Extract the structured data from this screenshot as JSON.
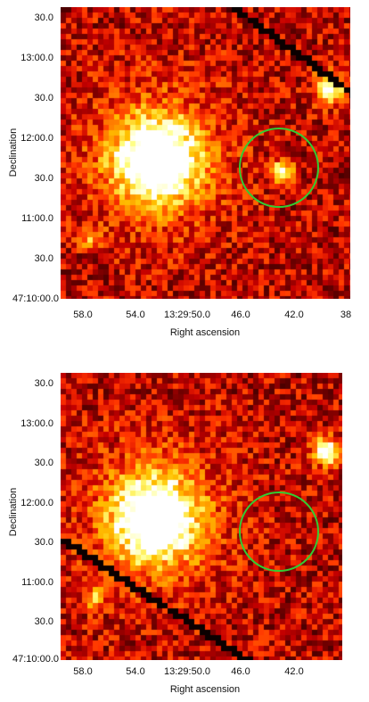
{
  "panels": [
    {
      "ylabel": "Declination",
      "xlabel": "Right ascension",
      "yticks": [
        "30.0",
        "13:00.0",
        "30.0",
        "12:00.0",
        "30.0",
        "11:00.0",
        "30.0",
        "47:10:00.0"
      ],
      "xticks": [
        "58.0",
        "54.0",
        "13:29:50.0",
        "46.0",
        "42.0",
        "38"
      ],
      "diagonal_streak": "upper-right",
      "source_in_circle": true
    },
    {
      "ylabel": "Declination",
      "xlabel": "Right ascension",
      "yticks": [
        "30.0",
        "13:00.0",
        "30.0",
        "12:00.0",
        "30.0",
        "11:00.0",
        "30.0",
        "47:10:00.0"
      ],
      "xticks": [
        "58.0",
        "54.0",
        "13:29:50.0",
        "46.0",
        "42.0"
      ],
      "diagonal_streak": "lower-left",
      "source_in_circle": false
    }
  ],
  "colors": {
    "circle": "#33cc33",
    "colormap": "heat"
  }
}
